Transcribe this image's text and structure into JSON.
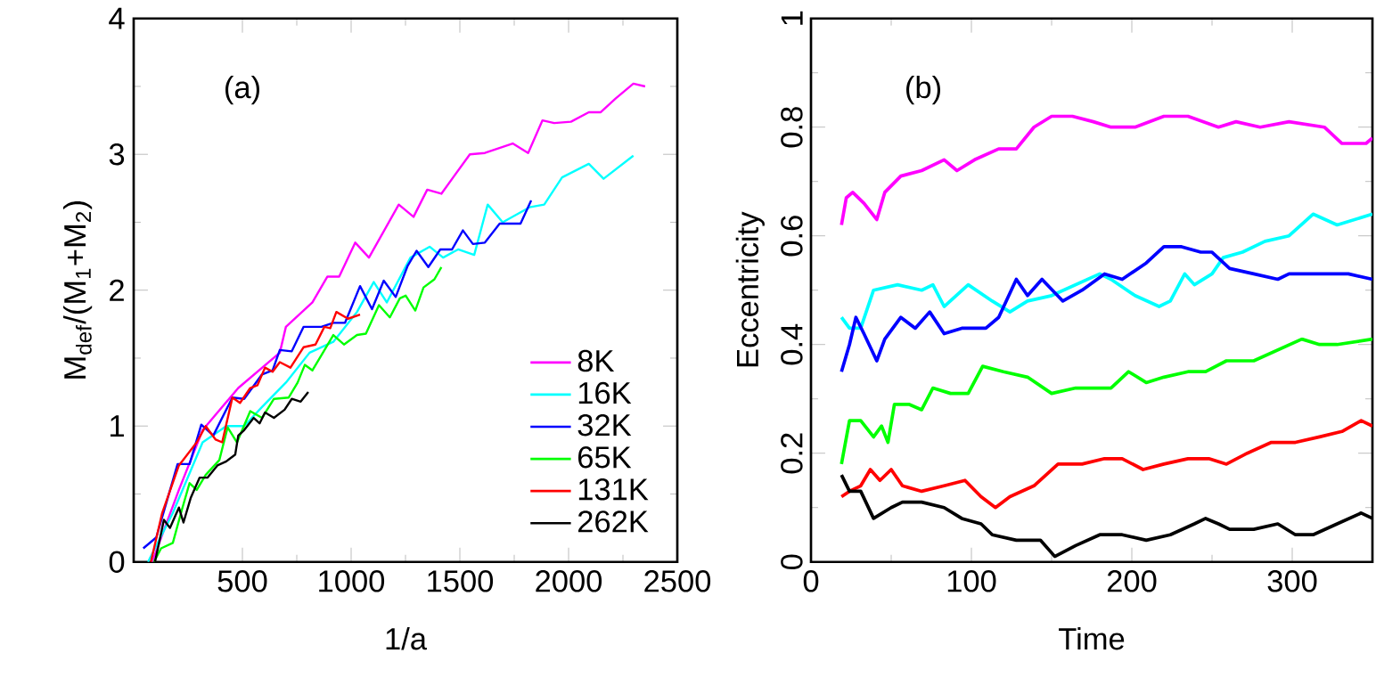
{
  "chart_data": [
    {
      "type": "line",
      "xlabel": "1/a",
      "ylabel": "M$_{def}$/(M$_{1}$+M$_{2}$)",
      "annotations": [
        "(a)"
      ],
      "legend": "bottom right",
      "xlim": [
        0,
        2500
      ],
      "ylim": [
        0,
        4
      ],
      "xticks": [
        500,
        1000,
        1500,
        2000,
        2500
      ],
      "yticks": [
        0,
        1,
        2,
        3,
        4
      ],
      "series": [
        {
          "name": "8K",
          "color": "#ff00ff",
          "x": [
            85,
            208,
            317,
            481,
            672,
            700,
            822,
            891,
            945,
            1019,
            1082,
            1219,
            1287,
            1350,
            1415,
            1546,
            1615,
            1743,
            1814,
            1880,
            1934,
            2011,
            2093,
            2148,
            2216,
            2298,
            2352
          ],
          "values": [
            0,
            0.53,
            0.97,
            1.28,
            1.54,
            1.73,
            1.91,
            2.1,
            2.1,
            2.35,
            2.24,
            2.63,
            2.54,
            2.74,
            2.71,
            3.0,
            3.01,
            3.08,
            3.01,
            3.25,
            3.23,
            3.24,
            3.31,
            3.31,
            3.41,
            3.52,
            3.5
          ]
        },
        {
          "name": "16K",
          "color": "#00ffff",
          "x": [
            66,
            180,
            317,
            426,
            508,
            590,
            700,
            809,
            918,
            1027,
            1104,
            1164,
            1273,
            1361,
            1423,
            1492,
            1566,
            1628,
            1697,
            1820,
            1888,
            1970,
            2093,
            2161,
            2298
          ],
          "values": [
            0,
            0.36,
            0.88,
            1.0,
            1.0,
            1.14,
            1.32,
            1.54,
            1.62,
            1.84,
            2.06,
            1.91,
            2.24,
            2.32,
            2.24,
            2.3,
            2.26,
            2.63,
            2.5,
            2.61,
            2.63,
            2.83,
            2.93,
            2.82,
            2.99
          ]
        },
        {
          "name": "32K",
          "color": "#0000ff",
          "x": [
            44,
            104,
            202,
            257,
            311,
            366,
            454,
            508,
            590,
            639,
            672,
            727,
            781,
            863,
            918,
            972,
            1041,
            1096,
            1150,
            1205,
            1260,
            1301,
            1355,
            1410,
            1464,
            1514,
            1560,
            1615,
            1683,
            1779,
            1828
          ],
          "values": [
            0.1,
            0.18,
            0.72,
            0.72,
            1.01,
            0.93,
            1.21,
            1.2,
            1.38,
            1.41,
            1.56,
            1.55,
            1.73,
            1.73,
            1.76,
            1.76,
            2.03,
            1.86,
            2.07,
            1.95,
            2.18,
            2.29,
            2.17,
            2.3,
            2.3,
            2.44,
            2.34,
            2.35,
            2.49,
            2.49,
            2.66
          ]
        },
        {
          "name": "65K",
          "color": "#00ff00",
          "x": [
            93,
            126,
            180,
            221,
            257,
            290,
            331,
            394,
            432,
            475,
            536,
            590,
            645,
            713,
            754,
            787,
            822,
            863,
            918,
            967,
            1027,
            1068,
            1128,
            1178,
            1224,
            1251,
            1295,
            1333,
            1383,
            1415
          ],
          "values": [
            0,
            0.1,
            0.14,
            0.38,
            0.58,
            0.53,
            0.64,
            0.75,
            0.99,
            0.88,
            1.11,
            1.06,
            1.2,
            1.21,
            1.32,
            1.45,
            1.41,
            1.52,
            1.67,
            1.6,
            1.67,
            1.68,
            1.89,
            1.8,
            1.94,
            1.96,
            1.85,
            2.02,
            2.08,
            2.17
          ]
        },
        {
          "name": "131K",
          "color": "#ff0000",
          "x": [
            79,
            131,
            208,
            290,
            331,
            377,
            407,
            454,
            489,
            536,
            569,
            604,
            639,
            672,
            721,
            781,
            836,
            877,
            904,
            932,
            986,
            1041
          ],
          "values": [
            0,
            0.36,
            0.71,
            0.88,
            1.0,
            0.9,
            0.88,
            1.21,
            1.17,
            1.28,
            1.3,
            1.43,
            1.4,
            1.47,
            1.43,
            1.58,
            1.6,
            1.73,
            1.72,
            1.84,
            1.79,
            1.82
          ]
        },
        {
          "name": "262K",
          "color": "#000000",
          "x": [
            98,
            139,
            167,
            208,
            229,
            262,
            303,
            339,
            385,
            426,
            467,
            481,
            508,
            552,
            579,
            604,
            645,
            694,
            727,
            768,
            803
          ],
          "values": [
            0,
            0.31,
            0.25,
            0.4,
            0.29,
            0.47,
            0.62,
            0.62,
            0.71,
            0.74,
            0.79,
            0.93,
            0.97,
            1.06,
            1.02,
            1.1,
            1.06,
            1.12,
            1.2,
            1.18,
            1.25
          ]
        }
      ]
    },
    {
      "type": "line",
      "xlabel": "Time",
      "ylabel": "Eccentricity",
      "annotations": [
        "(b)"
      ],
      "xlim": [
        0,
        350
      ],
      "ylim": [
        0,
        1
      ],
      "xticks": [
        0,
        100,
        200,
        300
      ],
      "yticks": [
        0,
        0.2,
        0.4,
        0.6,
        0.8,
        1
      ],
      "series": [
        {
          "color": "#ff00ff",
          "x": [
            19,
            22,
            26,
            33,
            41,
            46,
            56,
            69,
            83,
            91,
            102,
            117,
            128,
            139,
            150,
            163,
            176,
            187,
            202,
            220,
            235,
            254,
            265,
            280,
            298,
            320,
            331,
            346,
            350
          ],
          "values": [
            0.62,
            0.67,
            0.68,
            0.66,
            0.63,
            0.68,
            0.71,
            0.72,
            0.74,
            0.72,
            0.74,
            0.76,
            0.76,
            0.8,
            0.82,
            0.82,
            0.81,
            0.8,
            0.8,
            0.82,
            0.82,
            0.8,
            0.81,
            0.8,
            0.81,
            0.8,
            0.77,
            0.77,
            0.78
          ]
        },
        {
          "color": "#00ffff",
          "x": [
            19,
            24,
            31,
            39,
            54,
            69,
            76,
            83,
            98,
            113,
            124,
            135,
            150,
            165,
            180,
            187,
            202,
            217,
            224,
            233,
            239,
            250,
            257,
            269,
            283,
            298,
            313,
            328,
            350
          ],
          "values": [
            0.45,
            0.43,
            0.43,
            0.5,
            0.51,
            0.5,
            0.51,
            0.47,
            0.51,
            0.48,
            0.46,
            0.48,
            0.49,
            0.51,
            0.53,
            0.52,
            0.49,
            0.47,
            0.48,
            0.53,
            0.51,
            0.53,
            0.56,
            0.57,
            0.59,
            0.6,
            0.64,
            0.62,
            0.64
          ]
        },
        {
          "color": "#0000ff",
          "x": [
            19,
            24,
            28,
            33,
            41,
            46,
            56,
            65,
            74,
            83,
            94,
            109,
            117,
            128,
            135,
            144,
            157,
            169,
            183,
            194,
            209,
            220,
            231,
            243,
            250,
            261,
            276,
            291,
            298,
            320,
            335,
            350
          ],
          "values": [
            0.35,
            0.4,
            0.45,
            0.42,
            0.37,
            0.41,
            0.45,
            0.43,
            0.46,
            0.42,
            0.43,
            0.43,
            0.45,
            0.52,
            0.49,
            0.52,
            0.48,
            0.5,
            0.53,
            0.52,
            0.55,
            0.58,
            0.58,
            0.57,
            0.57,
            0.54,
            0.53,
            0.52,
            0.53,
            0.53,
            0.53,
            0.52
          ]
        },
        {
          "color": "#00ff00",
          "x": [
            19,
            24,
            31,
            39,
            44,
            48,
            52,
            61,
            69,
            76,
            87,
            98,
            107,
            120,
            135,
            150,
            165,
            187,
            198,
            209,
            220,
            235,
            246,
            259,
            276,
            291,
            306,
            317,
            328,
            350
          ],
          "values": [
            0.18,
            0.26,
            0.26,
            0.23,
            0.25,
            0.22,
            0.29,
            0.29,
            0.28,
            0.32,
            0.31,
            0.31,
            0.36,
            0.35,
            0.34,
            0.31,
            0.32,
            0.32,
            0.35,
            0.33,
            0.34,
            0.35,
            0.35,
            0.37,
            0.37,
            0.39,
            0.41,
            0.4,
            0.4,
            0.41
          ]
        },
        {
          "color": "#ff0000",
          "x": [
            19,
            24,
            31,
            37,
            43,
            50,
            57,
            69,
            83,
            96,
            106,
            115,
            124,
            139,
            154,
            169,
            183,
            194,
            207,
            220,
            235,
            248,
            259,
            272,
            287,
            302,
            317,
            331,
            343,
            350
          ],
          "values": [
            0.12,
            0.13,
            0.14,
            0.17,
            0.15,
            0.17,
            0.14,
            0.13,
            0.14,
            0.15,
            0.12,
            0.1,
            0.12,
            0.14,
            0.18,
            0.18,
            0.19,
            0.19,
            0.17,
            0.18,
            0.19,
            0.19,
            0.18,
            0.2,
            0.22,
            0.22,
            0.23,
            0.24,
            0.26,
            0.25
          ]
        },
        {
          "color": "#000000",
          "x": [
            19,
            24,
            31,
            39,
            50,
            57,
            69,
            83,
            94,
            106,
            113,
            128,
            143,
            152,
            165,
            180,
            194,
            209,
            224,
            239,
            246,
            254,
            261,
            276,
            291,
            302,
            313,
            328,
            343,
            350
          ],
          "values": [
            0.16,
            0.13,
            0.13,
            0.08,
            0.1,
            0.11,
            0.11,
            0.1,
            0.08,
            0.07,
            0.05,
            0.04,
            0.04,
            0.01,
            0.03,
            0.05,
            0.05,
            0.04,
            0.05,
            0.07,
            0.08,
            0.07,
            0.06,
            0.06,
            0.07,
            0.05,
            0.05,
            0.07,
            0.09,
            0.08
          ]
        }
      ]
    }
  ]
}
